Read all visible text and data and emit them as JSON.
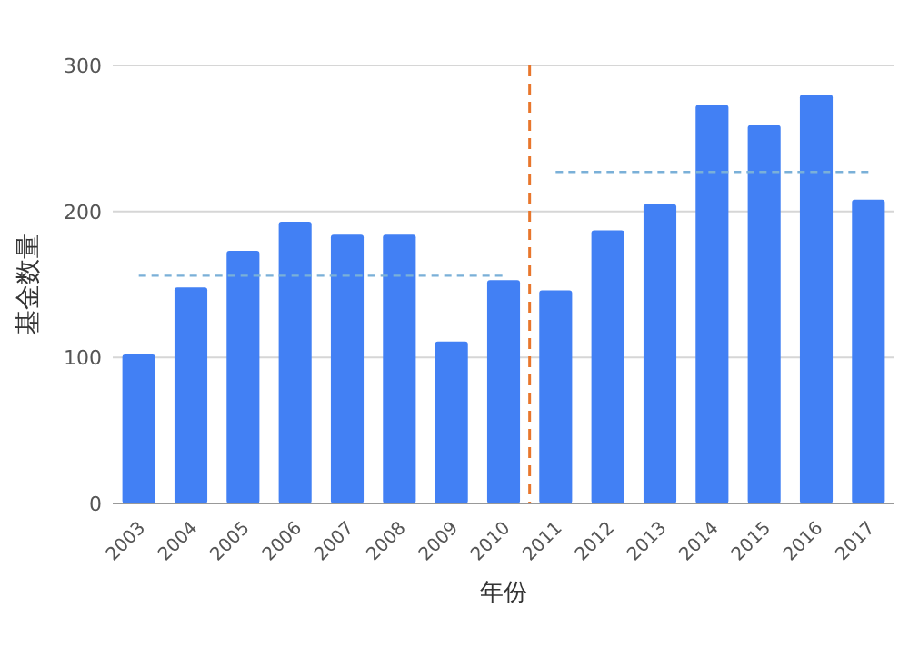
{
  "chart_data": {
    "type": "bar",
    "xlabel": "年份",
    "ylabel": "基金数量",
    "categories": [
      "2003",
      "2004",
      "2005",
      "2006",
      "2007",
      "2008",
      "2009",
      "2010",
      "2011",
      "2012",
      "2013",
      "2014",
      "2015",
      "2016",
      "2017"
    ],
    "series": [
      {
        "color": "#4280f4",
        "values": [
          102,
          148,
          173,
          193,
          184,
          184,
          111,
          153,
          146,
          187,
          205,
          273,
          259,
          280,
          208
        ]
      },
      {
        "type": "line",
        "line_style": "dashed",
        "color": "#7ab0d8",
        "values": [
          156,
          156,
          156,
          156,
          156,
          156,
          156,
          156,
          null,
          null,
          null,
          null,
          null,
          null,
          null
        ]
      },
      {
        "type": "line",
        "line_style": "dashed",
        "color": "#7ab0d8",
        "values": [
          null,
          null,
          null,
          null,
          null,
          null,
          null,
          null,
          227,
          227,
          227,
          227,
          227,
          227,
          227
        ]
      }
    ],
    "ylim": [
      0,
      300
    ],
    "yticks": [
      0,
      100,
      200,
      300
    ],
    "ref_lines": [
      {
        "axis": "x",
        "value": "2011",
        "color": "#e8762c",
        "line_style": "dashed"
      }
    ],
    "grid": "y"
  }
}
